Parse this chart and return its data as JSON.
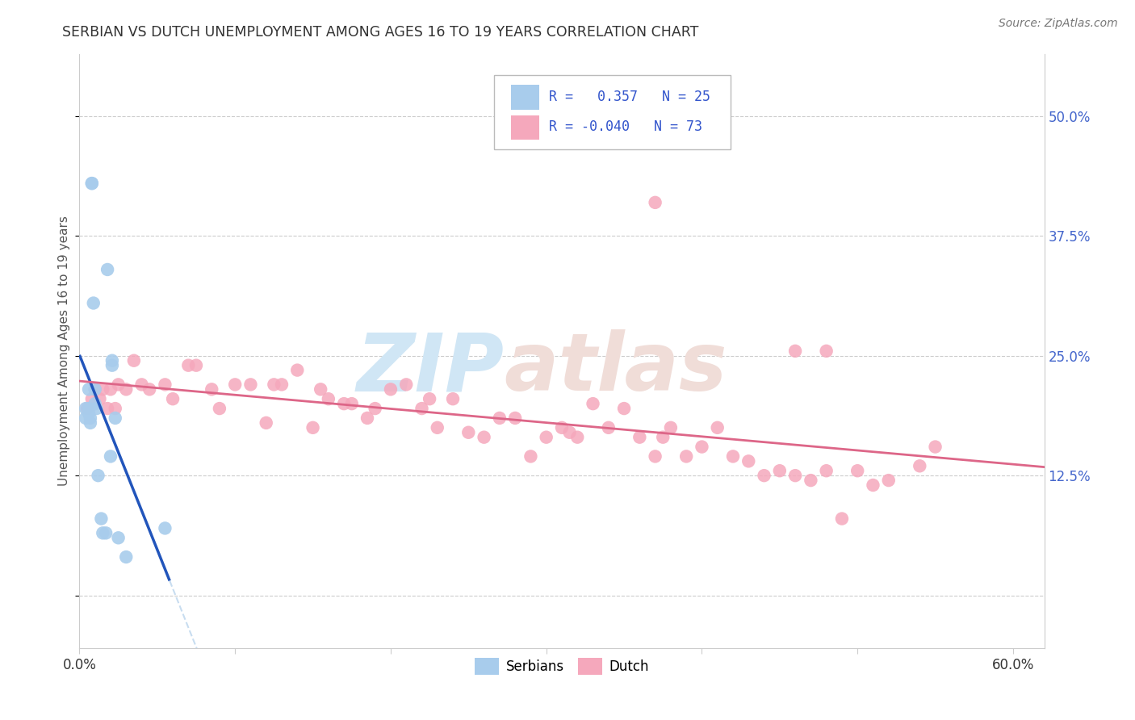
{
  "title": "SERBIAN VS DUTCH UNEMPLOYMENT AMONG AGES 16 TO 19 YEARS CORRELATION CHART",
  "source": "Source: ZipAtlas.com",
  "ylabel": "Unemployment Among Ages 16 to 19 years",
  "serbian_R": "0.357",
  "serbian_N": "25",
  "dutch_R": "-0.040",
  "dutch_N": "73",
  "serbian_color": "#a8ccec",
  "dutch_color": "#f5a8bc",
  "serbian_line_color": "#2255bb",
  "dutch_line_color": "#dd6688",
  "trendline_dashed_color": "#c8ddf0",
  "watermark_zip_color": "#d0e6f5",
  "watermark_atlas_color": "#f0ddd8",
  "grid_color": "#cccccc",
  "title_color": "#333333",
  "source_color": "#777777",
  "tick_color": "#4466cc",
  "xlim": [
    0.0,
    0.62
  ],
  "ylim": [
    -0.055,
    0.565
  ],
  "xtick_pos": [
    0.0,
    0.1,
    0.2,
    0.3,
    0.4,
    0.5,
    0.6
  ],
  "xtick_labels": [
    "0.0%",
    "",
    "",
    "",
    "",
    "",
    "60.0%"
  ],
  "ytick_pos": [
    0.0,
    0.125,
    0.25,
    0.375,
    0.5
  ],
  "ytick_labels": [
    "",
    "12.5%",
    "25.0%",
    "37.5%",
    "50.0%"
  ],
  "serbian_x": [
    0.004,
    0.004,
    0.006,
    0.006,
    0.006,
    0.007,
    0.007,
    0.008,
    0.008,
    0.009,
    0.01,
    0.01,
    0.011,
    0.012,
    0.014,
    0.015,
    0.017,
    0.018,
    0.02,
    0.021,
    0.021,
    0.023,
    0.025,
    0.03,
    0.055
  ],
  "serbian_y": [
    0.185,
    0.195,
    0.19,
    0.215,
    0.195,
    0.185,
    0.18,
    0.43,
    0.43,
    0.305,
    0.215,
    0.2,
    0.195,
    0.125,
    0.08,
    0.065,
    0.065,
    0.34,
    0.145,
    0.24,
    0.245,
    0.185,
    0.06,
    0.04,
    0.07
  ],
  "dutch_x": [
    0.005,
    0.008,
    0.01,
    0.013,
    0.015,
    0.018,
    0.02,
    0.023,
    0.025,
    0.03,
    0.035,
    0.04,
    0.045,
    0.055,
    0.06,
    0.07,
    0.075,
    0.085,
    0.09,
    0.1,
    0.11,
    0.12,
    0.125,
    0.13,
    0.14,
    0.15,
    0.155,
    0.16,
    0.17,
    0.175,
    0.185,
    0.19,
    0.2,
    0.21,
    0.22,
    0.225,
    0.23,
    0.24,
    0.25,
    0.26,
    0.27,
    0.28,
    0.29,
    0.3,
    0.31,
    0.315,
    0.32,
    0.33,
    0.34,
    0.35,
    0.36,
    0.37,
    0.375,
    0.38,
    0.39,
    0.4,
    0.41,
    0.42,
    0.43,
    0.44,
    0.45,
    0.46,
    0.47,
    0.48,
    0.49,
    0.5,
    0.51,
    0.52,
    0.54,
    0.55,
    0.37,
    0.46,
    0.48
  ],
  "dutch_y": [
    0.195,
    0.205,
    0.215,
    0.205,
    0.215,
    0.195,
    0.215,
    0.195,
    0.22,
    0.215,
    0.245,
    0.22,
    0.215,
    0.22,
    0.205,
    0.24,
    0.24,
    0.215,
    0.195,
    0.22,
    0.22,
    0.18,
    0.22,
    0.22,
    0.235,
    0.175,
    0.215,
    0.205,
    0.2,
    0.2,
    0.185,
    0.195,
    0.215,
    0.22,
    0.195,
    0.205,
    0.175,
    0.205,
    0.17,
    0.165,
    0.185,
    0.185,
    0.145,
    0.165,
    0.175,
    0.17,
    0.165,
    0.2,
    0.175,
    0.195,
    0.165,
    0.145,
    0.165,
    0.175,
    0.145,
    0.155,
    0.175,
    0.145,
    0.14,
    0.125,
    0.13,
    0.125,
    0.12,
    0.13,
    0.08,
    0.13,
    0.115,
    0.12,
    0.135,
    0.155,
    0.41,
    0.255,
    0.255
  ]
}
